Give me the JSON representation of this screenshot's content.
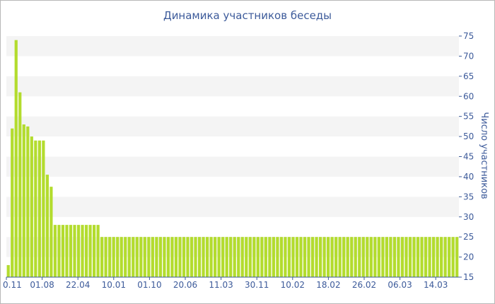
{
  "chart_data": {
    "type": "bar",
    "title": "Динамика участников беседы",
    "ylabel": "Число участников",
    "xlabel": "",
    "ylim": [
      15,
      75
    ],
    "yticks": [
      15,
      20,
      25,
      30,
      35,
      40,
      45,
      50,
      55,
      60,
      65,
      70,
      75
    ],
    "x_tick_labels": [
      "0.11",
      "01.08",
      "22.04",
      "10.01",
      "01.10",
      "20.06",
      "11.03",
      "30.11",
      "10.02",
      "18.02",
      "26.02",
      "06.03",
      "14.03"
    ],
    "bar_color": "#b3dc2e",
    "band_color": "#f4f4f4",
    "grid": true,
    "values": [
      18,
      52,
      74,
      61,
      53,
      52.5,
      50,
      49,
      49,
      49,
      40.5,
      37.5,
      28,
      28,
      28,
      28,
      28,
      28,
      28,
      28,
      28,
      28,
      28,
      28,
      25,
      25,
      25,
      25,
      25,
      25,
      25,
      25,
      25,
      25,
      25,
      25,
      25,
      25,
      25,
      25,
      25,
      25,
      25,
      25,
      25,
      25,
      25,
      25,
      25,
      25,
      25,
      25,
      25,
      25,
      25,
      25,
      25,
      25,
      25,
      25,
      25,
      25,
      25,
      25,
      25,
      25,
      25,
      25,
      25,
      25,
      25,
      25,
      25,
      25,
      25,
      25,
      25,
      25,
      25,
      25,
      25,
      25,
      25,
      25,
      25,
      25,
      25,
      25,
      25,
      25,
      25,
      25,
      25,
      25,
      25,
      25,
      25,
      25,
      25,
      25,
      25,
      25,
      25,
      25,
      25,
      25,
      25,
      25,
      25,
      25,
      25,
      25,
      25,
      25,
      25,
      25
    ]
  }
}
